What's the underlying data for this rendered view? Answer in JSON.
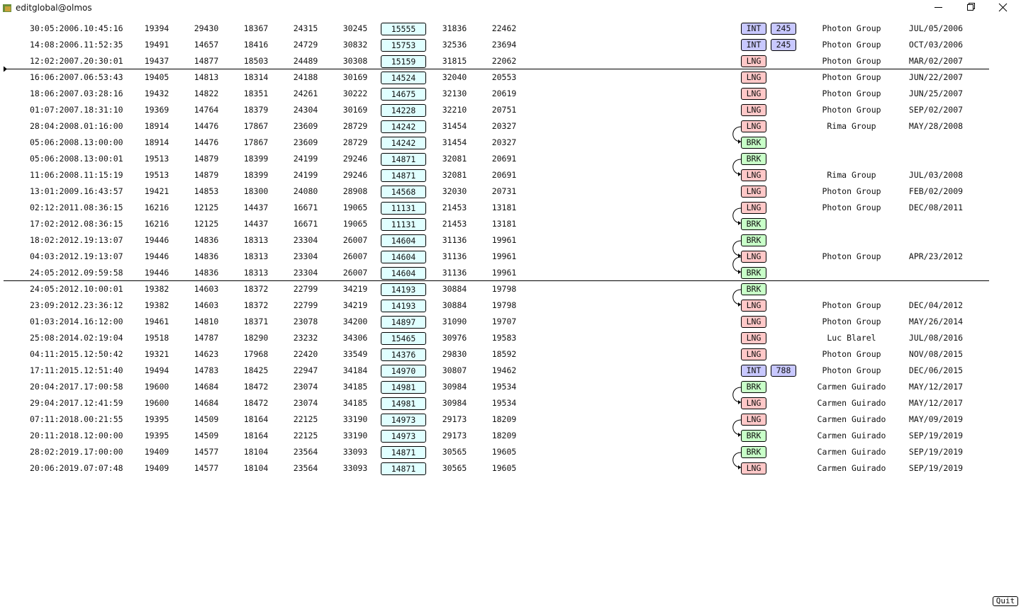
{
  "window": {
    "title": "editglobal@olmos"
  },
  "buttons": {
    "quit": "Quit"
  },
  "table": {
    "rows": [
      {
        "time": "30:05:2006.10:45:16",
        "values": [
          19394,
          29430,
          18367,
          24315,
          30245,
          15555,
          31836,
          22462
        ],
        "tag": "INT",
        "tag_number": 245,
        "group": "Photon Group",
        "date": "JUL/05/2006"
      },
      {
        "time": "14:08:2006.11:52:35",
        "values": [
          19491,
          14657,
          18416,
          24729,
          30832,
          15753,
          32536,
          23694
        ],
        "tag": "INT",
        "tag_number": 245,
        "group": "Photon Group",
        "date": "OCT/03/2006"
      },
      {
        "time": "12:02:2007.20:30:01",
        "values": [
          19437,
          14877,
          18503,
          24489,
          30308,
          15159,
          31815,
          22062
        ],
        "tag": "LNG",
        "group": "Photon Group",
        "date": "MAR/02/2007"
      },
      {
        "time": "16:06:2007.06:53:43",
        "values": [
          19405,
          14813,
          18314,
          24188,
          30169,
          14524,
          32040,
          20553
        ],
        "tag": "LNG",
        "group": "Photon Group",
        "date": "JUN/22/2007"
      },
      {
        "time": "18:06:2007.03:28:16",
        "values": [
          19432,
          14822,
          18351,
          24261,
          30222,
          14675,
          32130,
          20619
        ],
        "tag": "LNG",
        "group": "Photon Group",
        "date": "JUN/25/2007"
      },
      {
        "time": "01:07:2007.18:31:10",
        "values": [
          19369,
          14764,
          18379,
          24304,
          30169,
          14228,
          32210,
          20751
        ],
        "tag": "LNG",
        "group": "Photon Group",
        "date": "SEP/02/2007"
      },
      {
        "time": "28:04:2008.01:16:00",
        "values": [
          18914,
          14476,
          17867,
          23609,
          28729,
          14242,
          31454,
          20327
        ],
        "tag": "LNG",
        "group": "Rima Group",
        "date": "MAY/28/2008"
      },
      {
        "time": "05:06:2008.13:00:00",
        "values": [
          18914,
          14476,
          17867,
          23609,
          28729,
          14242,
          31454,
          20327
        ],
        "tag": "BRK"
      },
      {
        "time": "05:06:2008.13:00:01",
        "values": [
          19513,
          14879,
          18399,
          24199,
          29246,
          14871,
          32081,
          20691
        ],
        "tag": "BRK"
      },
      {
        "time": "11:06:2008.11:15:19",
        "values": [
          19513,
          14879,
          18399,
          24199,
          29246,
          14871,
          32081,
          20691
        ],
        "tag": "LNG",
        "group": "Rima Group",
        "date": "JUL/03/2008"
      },
      {
        "time": "13:01:2009.16:43:57",
        "values": [
          19421,
          14853,
          18300,
          24080,
          28908,
          14568,
          32030,
          20731
        ],
        "tag": "LNG",
        "group": "Photon Group",
        "date": "FEB/02/2009"
      },
      {
        "time": "02:12:2011.08:36:15",
        "values": [
          16216,
          12125,
          14437,
          16671,
          19065,
          11131,
          21453,
          13181
        ],
        "tag": "LNG",
        "group": "Photon Group",
        "date": "DEC/08/2011"
      },
      {
        "time": "17:02:2012.08:36:15",
        "values": [
          16216,
          12125,
          14437,
          16671,
          19065,
          11131,
          21453,
          13181
        ],
        "tag": "BRK"
      },
      {
        "time": "18:02:2012.19:13:07",
        "values": [
          19446,
          14836,
          18313,
          23304,
          26007,
          14604,
          31136,
          19961
        ],
        "tag": "BRK"
      },
      {
        "time": "04:03:2012.19:13:07",
        "values": [
          19446,
          14836,
          18313,
          23304,
          26007,
          14604,
          31136,
          19961
        ],
        "tag": "LNG",
        "group": "Photon Group",
        "date": "APR/23/2012"
      },
      {
        "time": "24:05:2012.09:59:58",
        "values": [
          19446,
          14836,
          18313,
          23304,
          26007,
          14604,
          31136,
          19961
        ],
        "tag": "BRK"
      },
      {
        "time": "24:05:2012.10:00:01",
        "values": [
          19382,
          14603,
          18372,
          22799,
          34219,
          14193,
          30884,
          19798
        ],
        "tag": "BRK"
      },
      {
        "time": "23:09:2012.23:36:12",
        "values": [
          19382,
          14603,
          18372,
          22799,
          34219,
          14193,
          30884,
          19798
        ],
        "tag": "LNG",
        "group": "Photon Group",
        "date": "DEC/04/2012"
      },
      {
        "time": "01:03:2014.16:12:00",
        "values": [
          19461,
          14810,
          18371,
          23078,
          34200,
          14897,
          31090,
          19707
        ],
        "tag": "LNG",
        "group": "Photon Group",
        "date": "MAY/26/2014"
      },
      {
        "time": "25:08:2014.02:19:04",
        "values": [
          19518,
          14787,
          18290,
          23232,
          34306,
          15465,
          30976,
          19583
        ],
        "tag": "LNG",
        "group": "Luc Blarel",
        "date": "JUL/08/2016"
      },
      {
        "time": "04:11:2015.12:50:42",
        "values": [
          19321,
          14623,
          17968,
          22420,
          33549,
          14376,
          29830,
          18592
        ],
        "tag": "LNG",
        "group": "Photon Group",
        "date": "NOV/08/2015"
      },
      {
        "time": "17:11:2015.12:51:40",
        "values": [
          19494,
          14783,
          18425,
          22947,
          34184,
          14970,
          30807,
          19462
        ],
        "tag": "INT",
        "tag_number": 788,
        "group": "Photon Group",
        "date": "DEC/06/2015"
      },
      {
        "time": "20:04:2017.17:00:58",
        "values": [
          19600,
          14684,
          18472,
          23074,
          34185,
          14981,
          30984,
          19534
        ],
        "tag": "BRK",
        "group": "Carmen Guirado",
        "date": "MAY/12/2017"
      },
      {
        "time": "29:04:2017.12:41:59",
        "values": [
          19600,
          14684,
          18472,
          23074,
          34185,
          14981,
          30984,
          19534
        ],
        "tag": "LNG",
        "group": "Carmen Guirado",
        "date": "MAY/12/2017"
      },
      {
        "time": "07:11:2018.00:21:55",
        "values": [
          19395,
          14509,
          18164,
          22125,
          33190,
          14973,
          29173,
          18209
        ],
        "tag": "LNG",
        "group": "Carmen Guirado",
        "date": "MAY/09/2019"
      },
      {
        "time": "20:11:2018.12:00:00",
        "values": [
          19395,
          14509,
          18164,
          22125,
          33190,
          14973,
          29173,
          18209
        ],
        "tag": "BRK",
        "group": "Carmen Guirado",
        "date": "SEP/19/2019"
      },
      {
        "time": "28:02:2019.17:00:00",
        "values": [
          19409,
          14577,
          18104,
          23564,
          33093,
          14871,
          30565,
          19605
        ],
        "tag": "BRK",
        "group": "Carmen Guirado",
        "date": "SEP/19/2019"
      },
      {
        "time": "20:06:2019.07:07:48",
        "values": [
          19409,
          14577,
          18104,
          23564,
          33093,
          14871,
          30565,
          19605
        ],
        "tag": "LNG",
        "group": "Carmen Guirado",
        "date": "SEP/19/2019"
      }
    ]
  }
}
